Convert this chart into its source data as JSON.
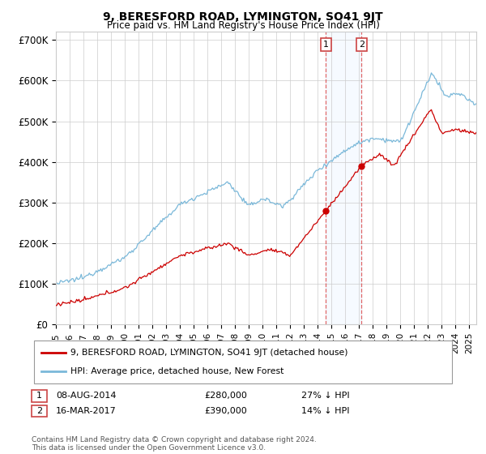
{
  "title": "9, BERESFORD ROAD, LYMINGTON, SO41 9JT",
  "subtitle": "Price paid vs. HM Land Registry's House Price Index (HPI)",
  "ylabel_ticks": [
    "£0",
    "£100K",
    "£200K",
    "£300K",
    "£400K",
    "£500K",
    "£600K",
    "£700K"
  ],
  "ytick_values": [
    0,
    100000,
    200000,
    300000,
    400000,
    500000,
    600000,
    700000
  ],
  "ylim": [
    0,
    720000
  ],
  "hpi_color": "#7ab8d9",
  "price_color": "#cc0000",
  "t1_year": 2014.583,
  "t2_year": 2017.167,
  "t1_price": 280000,
  "t2_price": 390000,
  "transaction1": {
    "date": "08-AUG-2014",
    "price": 280000,
    "label": "1",
    "pct": "27% ↓ HPI"
  },
  "transaction2": {
    "date": "16-MAR-2017",
    "price": 390000,
    "label": "2",
    "pct": "14% ↓ HPI"
  },
  "legend_label1": "9, BERESFORD ROAD, LYMINGTON, SO41 9JT (detached house)",
  "legend_label2": "HPI: Average price, detached house, New Forest",
  "footnote": "Contains HM Land Registry data © Crown copyright and database right 2024.\nThis data is licensed under the Open Government Licence v3.0.",
  "background_color": "#ffffff",
  "grid_color": "#cccccc",
  "vspan_color": "#ddeeff",
  "vline_color": "#dd4444"
}
